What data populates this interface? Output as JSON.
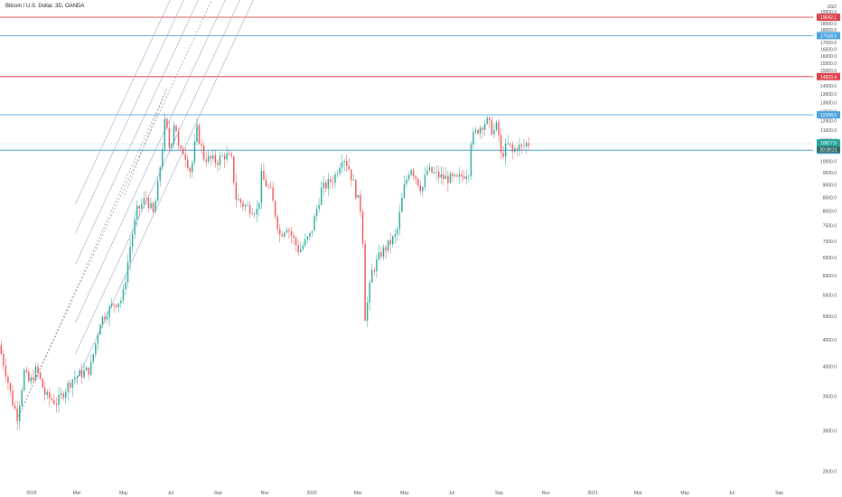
{
  "header": {
    "title": "Bitcoin / U.S. Dollar, 3D, OANDA"
  },
  "currency_label": "USD",
  "colors": {
    "up": "#26a69a",
    "down": "#ef5350",
    "resistance": "#e0404a",
    "support": "#4aa3df",
    "current": "#26a69a",
    "countdown": "#2b6b68",
    "channel": "#9aa6c8",
    "grid": "#ffffff",
    "axis_text": "#4a4e59"
  },
  "chart_data": {
    "type": "candlestick",
    "symbol": "Bitcoin / U.S. Dollar",
    "interval": "3D",
    "exchange": "OANDA",
    "y_scale": "log",
    "ylim": [
      2350,
      20400
    ],
    "xlim": [
      "2018-11-21",
      "2021-10-15"
    ],
    "y_ticks": [
      "2500.0",
      "3000.0",
      "3500.0",
      "4000.0",
      "4500.0",
      "5000.0",
      "5500.0",
      "6000.0",
      "6500.0",
      "7000.0",
      "7500.0",
      "8000.0",
      "8500.0",
      "9000.0",
      "9500.0",
      "10000.0",
      "10500.0",
      "11000.0",
      "11500.0",
      "12000.0",
      "12500.0",
      "13000.0",
      "13500.0",
      "14000.0",
      "14500.0",
      "15000.0",
      "15500.0",
      "16000.0",
      "16500.0",
      "17000.0",
      "17500.0",
      "18000.0",
      "18500.0",
      "19000.0",
      "19500.0",
      "20000.0"
    ],
    "x_ticks": [
      {
        "label": "2019",
        "date": "2019-01-01"
      },
      {
        "label": "Mar",
        "date": "2019-03-01"
      },
      {
        "label": "May",
        "date": "2019-05-01"
      },
      {
        "label": "Jul",
        "date": "2019-07-01"
      },
      {
        "label": "Sep",
        "date": "2019-09-01"
      },
      {
        "label": "Nov",
        "date": "2019-11-01"
      },
      {
        "label": "2020",
        "date": "2020-01-01"
      },
      {
        "label": "Mar",
        "date": "2020-03-01"
      },
      {
        "label": "May",
        "date": "2020-05-01"
      },
      {
        "label": "Jul",
        "date": "2020-07-01"
      },
      {
        "label": "Sep",
        "date": "2020-09-01"
      },
      {
        "label": "Nov",
        "date": "2020-11-01"
      },
      {
        "label": "2021",
        "date": "2021-01-01"
      },
      {
        "label": "Mar",
        "date": "2021-03-01"
      },
      {
        "label": "May",
        "date": "2021-05-01"
      },
      {
        "label": "Jul",
        "date": "2021-07-01"
      },
      {
        "label": "Sep",
        "date": "2021-09-01"
      }
    ],
    "price_path": [
      [
        "2018-11-21",
        4400
      ],
      [
        "2018-11-30",
        3900
      ],
      [
        "2018-12-09",
        3400
      ],
      [
        "2018-12-15",
        3200
      ],
      [
        "2018-12-24",
        3900
      ],
      [
        "2018-12-31",
        3700
      ],
      [
        "2019-01-09",
        3950
      ],
      [
        "2019-01-21",
        3500
      ],
      [
        "2019-02-05",
        3400
      ],
      [
        "2019-02-15",
        3600
      ],
      [
        "2019-02-26",
        3800
      ],
      [
        "2019-03-20",
        3950
      ],
      [
        "2019-04-02",
        4900
      ],
      [
        "2019-04-20",
        5300
      ],
      [
        "2019-05-01",
        5400
      ],
      [
        "2019-05-12",
        7000
      ],
      [
        "2019-05-20",
        8000
      ],
      [
        "2019-06-01",
        8500
      ],
      [
        "2019-06-10",
        7900
      ],
      [
        "2019-06-15",
        8700
      ],
      [
        "2019-06-23",
        11000
      ],
      [
        "2019-06-26",
        12300
      ],
      [
        "2019-06-29",
        11000
      ],
      [
        "2019-07-02",
        10500
      ],
      [
        "2019-07-08",
        12200
      ],
      [
        "2019-07-14",
        10300
      ],
      [
        "2019-07-20",
        10500
      ],
      [
        "2019-07-29",
        9500
      ],
      [
        "2019-08-06",
        11500
      ],
      [
        "2019-08-15",
        10200
      ],
      [
        "2019-08-21",
        10100
      ],
      [
        "2019-09-01",
        10000
      ],
      [
        "2019-09-12",
        10300
      ],
      [
        "2019-09-21",
        10000
      ],
      [
        "2019-09-25",
        8500
      ],
      [
        "2019-10-07",
        8200
      ],
      [
        "2019-10-25",
        8000
      ],
      [
        "2019-10-28",
        9400
      ],
      [
        "2019-11-10",
        8700
      ],
      [
        "2019-11-22",
        7200
      ],
      [
        "2019-12-01",
        7500
      ],
      [
        "2019-12-17",
        6700
      ],
      [
        "2020-01-01",
        7200
      ],
      [
        "2020-01-15",
        8800
      ],
      [
        "2020-02-01",
        9300
      ],
      [
        "2020-02-12",
        10300
      ],
      [
        "2020-02-20",
        9700
      ],
      [
        "2020-03-01",
        8600
      ],
      [
        "2020-03-08",
        7900
      ],
      [
        "2020-03-12",
        5000
      ],
      [
        "2020-03-15",
        5300
      ],
      [
        "2020-03-21",
        6100
      ],
      [
        "2020-04-01",
        6600
      ],
      [
        "2020-04-22",
        7200
      ],
      [
        "2020-05-01",
        8800
      ],
      [
        "2020-05-10",
        9800
      ],
      [
        "2020-05-25",
        8800
      ],
      [
        "2020-06-01",
        9600
      ],
      [
        "2020-06-20",
        9300
      ],
      [
        "2020-07-10",
        9200
      ],
      [
        "2020-07-25",
        9600
      ],
      [
        "2020-07-28",
        11000
      ],
      [
        "2020-08-07",
        11600
      ],
      [
        "2020-08-17",
        12000
      ],
      [
        "2020-08-26",
        11400
      ],
      [
        "2020-09-01",
        11800
      ],
      [
        "2020-09-04",
        10200
      ],
      [
        "2020-09-15",
        10800
      ],
      [
        "2020-09-20",
        10400
      ],
      [
        "2020-09-26",
        10700
      ],
      [
        "2020-10-03",
        10600
      ],
      [
        "2020-10-08",
        10820
      ]
    ],
    "horizontal_levels": [
      {
        "label": "19042.1",
        "value": 19042.1,
        "kind": "resistance"
      },
      {
        "label": "17538.5",
        "value": 17538.5,
        "kind": "support"
      },
      {
        "label": "14603.4",
        "value": 14603.4,
        "kind": "resistance"
      },
      {
        "label": "12308.5",
        "value": 12308.5,
        "kind": "support"
      },
      {
        "label": "10506.9",
        "value": 10506.9,
        "kind": "support"
      }
    ],
    "last_price": {
      "label": "10817.5",
      "value": 10817.5
    },
    "countdown": {
      "label": "20:28:21"
    },
    "pitchfork": {
      "pivots": [
        [
          "2018-12-15",
          3200
        ],
        [
          "2019-06-26",
          13800
        ],
        [
          "2019-05-01",
          8500
        ]
      ],
      "channel_offsets_log": [
        0.4,
        0.27,
        0.13,
        0,
        -0.13,
        -0.27,
        -0.4
      ]
    }
  }
}
